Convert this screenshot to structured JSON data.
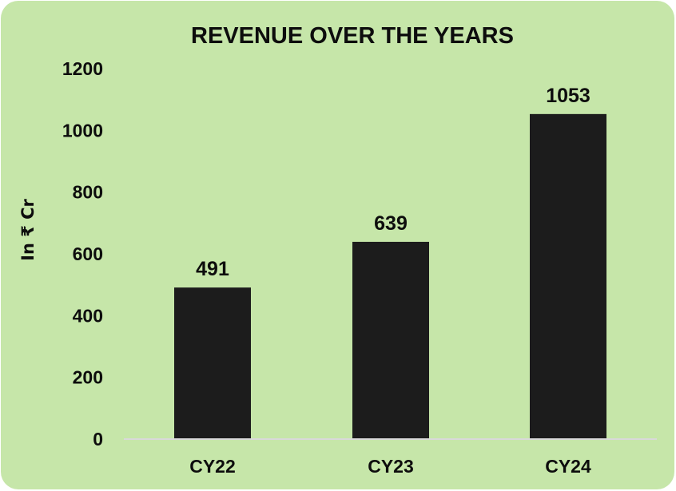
{
  "chart_data": {
    "type": "bar",
    "title": "REVENUE OVER THE YEARS",
    "xlabel": "",
    "ylabel": "In ₹ Cr",
    "categories": [
      "CY22",
      "CY23",
      "CY24"
    ],
    "values": [
      491,
      639,
      1053
    ],
    "data_labels": [
      "491",
      "639",
      "1053"
    ],
    "ylim": [
      0,
      1200
    ],
    "yticks": [
      0,
      200,
      400,
      600,
      800,
      1000,
      1200
    ],
    "ytick_labels": [
      "0",
      "200",
      "400",
      "600",
      "800",
      "1000",
      "1200"
    ],
    "grid": false,
    "legend": "none",
    "colors": {
      "background": "#c6e6a9",
      "bar": "#1c1c1c",
      "text": "#0d0d0d",
      "baseline": "#d9d9d9"
    }
  }
}
